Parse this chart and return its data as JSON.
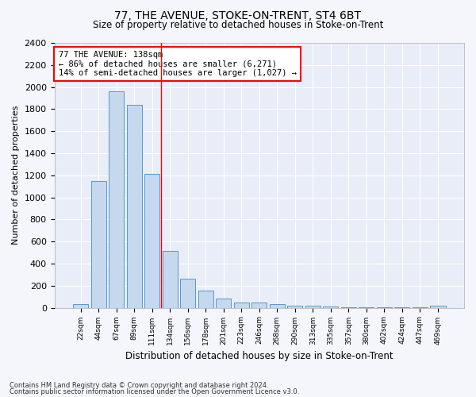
{
  "title1": "77, THE AVENUE, STOKE-ON-TRENT, ST4 6BT",
  "title2": "Size of property relative to detached houses in Stoke-on-Trent",
  "xlabel": "Distribution of detached houses by size in Stoke-on-Trent",
  "ylabel": "Number of detached properties",
  "categories": [
    "22sqm",
    "44sqm",
    "67sqm",
    "89sqm",
    "111sqm",
    "134sqm",
    "156sqm",
    "178sqm",
    "201sqm",
    "223sqm",
    "246sqm",
    "268sqm",
    "290sqm",
    "313sqm",
    "335sqm",
    "357sqm",
    "380sqm",
    "402sqm",
    "424sqm",
    "447sqm",
    "469sqm"
  ],
  "values": [
    30,
    1150,
    1960,
    1840,
    1215,
    515,
    265,
    155,
    80,
    50,
    45,
    35,
    20,
    15,
    10,
    5,
    5,
    5,
    5,
    5,
    20
  ],
  "bar_color": "#c5d8ee",
  "bar_edge_color": "#5599cc",
  "annotation_text": "77 THE AVENUE: 138sqm\n← 86% of detached houses are smaller (6,271)\n14% of semi-detached houses are larger (1,027) →",
  "footnote1": "Contains HM Land Registry data © Crown copyright and database right 2024.",
  "footnote2": "Contains public sector information licensed under the Open Government Licence v3.0.",
  "ylim": [
    0,
    2400
  ],
  "yticks": [
    0,
    200,
    400,
    600,
    800,
    1000,
    1200,
    1400,
    1600,
    1800,
    2000,
    2200,
    2400
  ],
  "bg_color": "#e8edf8",
  "grid_color": "#ffffff",
  "fig_bg_color": "#f4f6fc"
}
